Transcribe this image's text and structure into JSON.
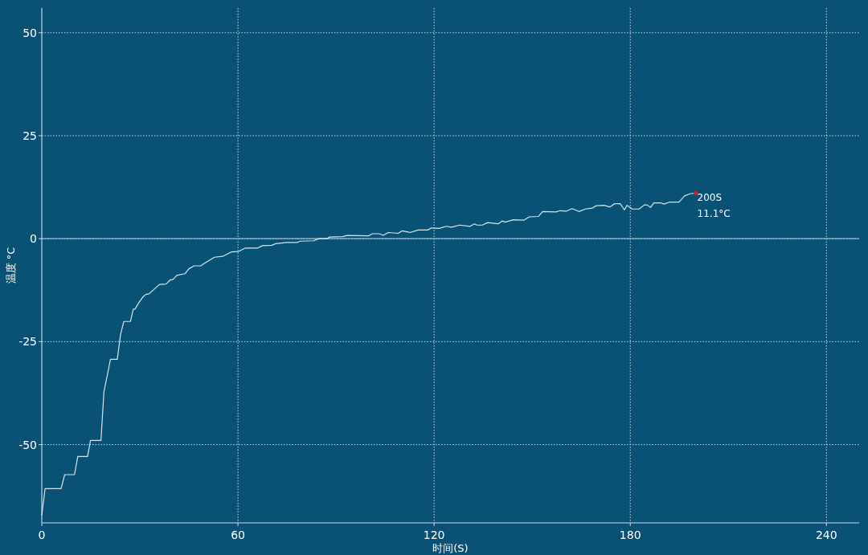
{
  "chart_data": {
    "type": "line",
    "xlabel": "时间(S)",
    "ylabel": "温度 °C",
    "x": [
      0,
      1,
      5.9,
      7,
      10,
      11,
      14,
      14.9,
      18.1,
      19,
      20,
      21,
      23.1,
      24.1,
      25.1,
      27.1,
      28,
      28.5,
      29.8,
      31,
      31.9,
      32.8,
      36,
      38,
      39.3,
      40,
      41.3,
      43.8,
      45,
      46.6,
      48.6,
      50.3,
      52.8,
      55.3,
      58.1,
      60.2,
      62.2,
      65.9,
      67.5,
      70.4,
      71.6,
      74.9,
      78.2,
      79,
      83.1,
      84.8,
      87.2,
      88,
      92.1,
      93.4,
      100,
      101.1,
      103.2,
      104.4,
      106,
      109,
      110.2,
      112.6,
      115.1,
      118,
      119.2,
      121.6,
      123.7,
      125.3,
      127.8,
      131,
      132.3,
      133.1,
      134.7,
      136.4,
      139.6,
      140.9,
      141.7,
      144.2,
      147.5,
      149.1,
      151.9,
      153.2,
      157.3,
      158.5,
      160.5,
      162.2,
      164.3,
      166.3,
      168.3,
      169.6,
      172,
      173.7,
      175.3,
      176.9,
      178.2,
      179,
      180.6,
      182.7,
      184.3,
      185.1,
      186.2,
      187.2,
      189.3,
      190.3,
      192.1,
      194.9,
      196.6,
      198.3,
      200
    ],
    "series": [
      {
        "color": "#d3e6f0",
        "values": [
          -67.2,
          -60.7,
          -60.7,
          -57.3,
          -57.3,
          -52.9,
          -52.9,
          -49,
          -49,
          -37.2,
          -33.3,
          -29.3,
          -29.3,
          -23.2,
          -20.1,
          -20.1,
          -17.1,
          -17.1,
          -15.4,
          -14.1,
          -13.5,
          -13.4,
          -11.1,
          -11.0,
          -10.0,
          -10.0,
          -8.9,
          -8.5,
          -7.3,
          -6.6,
          -6.6,
          -5.7,
          -4.5,
          -4.3,
          -3.2,
          -3.1,
          -2.3,
          -2.3,
          -1.7,
          -1.6,
          -1.2,
          -0.9,
          -0.9,
          -0.6,
          -0.5,
          0,
          0,
          0.4,
          0.5,
          0.8,
          0.7,
          1.2,
          1.2,
          0.8,
          1.5,
          1.3,
          1.9,
          1.5,
          2.1,
          2.1,
          2.6,
          2.5,
          3.0,
          2.8,
          3.3,
          3.0,
          3.6,
          3.3,
          3.3,
          3.9,
          3.6,
          4.3,
          4.0,
          4.6,
          4.5,
          5.3,
          5.4,
          6.6,
          6.5,
          6.8,
          6.7,
          7.3,
          6.6,
          7.2,
          7.4,
          8.0,
          8.1,
          7.7,
          8.5,
          8.5,
          7.0,
          8.1,
          7.2,
          7.2,
          8.2,
          8.2,
          7.6,
          8.7,
          8.7,
          8.4,
          8.9,
          8.9,
          10.4,
          10.9,
          11.1
        ]
      }
    ],
    "xlim": [
      0,
      250
    ],
    "ylim": [
      -69,
      56
    ],
    "xticks": [
      0,
      60,
      120,
      180,
      240
    ],
    "yticks": [
      -50,
      -25,
      0,
      25,
      50
    ],
    "grid": true,
    "line_style": "solid",
    "ref_lines": [
      {
        "axis": "y",
        "value": 0,
        "color": "#9ab9c9"
      }
    ],
    "annotations": [
      {
        "text": "200S",
        "x": 200,
        "y": 11.1
      },
      {
        "text": "11.1°C",
        "x": 200,
        "y": 11.1
      }
    ]
  }
}
